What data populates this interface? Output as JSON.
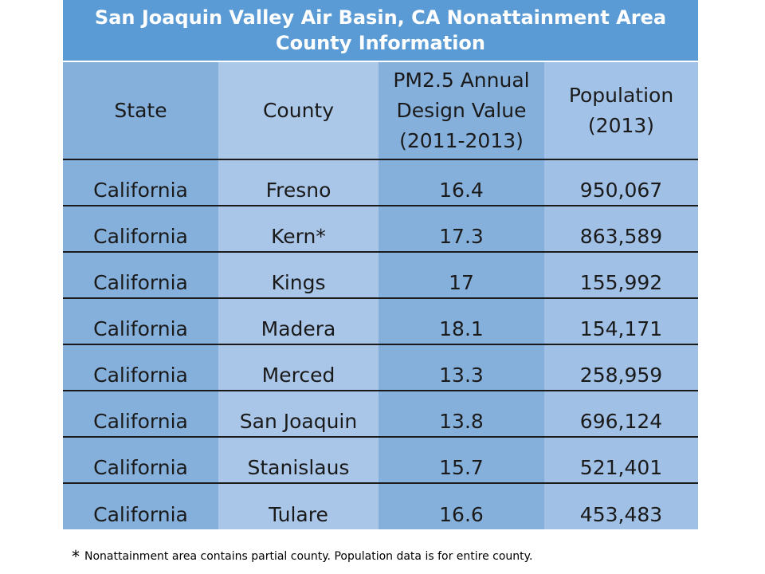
{
  "title": {
    "line1": "San Joaquin Valley Air Basin, CA Nonattainment Area",
    "line2": "County Information"
  },
  "table": {
    "headers": {
      "state": "State",
      "county": "County",
      "design_value_line1": "PM2.5 Annual",
      "design_value_line2": "Design Value",
      "design_value_line3": "(2011-2013)",
      "population_line1": "Population",
      "population_line2": "(2013)"
    },
    "rows": [
      {
        "state": "California",
        "county": "Fresno",
        "design_value": "16.4",
        "population": "950,067"
      },
      {
        "state": "California",
        "county": "Kern*",
        "design_value": "17.3",
        "population": "863,589"
      },
      {
        "state": "California",
        "county": "Kings",
        "design_value": "17",
        "population": "155,992"
      },
      {
        "state": "California",
        "county": "Madera",
        "design_value": "18.1",
        "population": "154,171"
      },
      {
        "state": "California",
        "county": "Merced",
        "design_value": "13.3",
        "population": "258,959"
      },
      {
        "state": "California",
        "county": "San Joaquin",
        "design_value": "13.8",
        "population": "696,124"
      },
      {
        "state": "California",
        "county": "Stanislaus",
        "design_value": "15.7",
        "population": "521,401"
      },
      {
        "state": "California",
        "county": "Tulare",
        "design_value": "16.6",
        "population": "453,483"
      }
    ]
  },
  "footnote": {
    "star": "*",
    "text": "Nonattainment area contains partial county.  Population data is for entire county."
  },
  "colors": {
    "title_bg": "#5b9bd5",
    "column_dark": "#86b0dc",
    "column_light": "#a9c6e8"
  }
}
